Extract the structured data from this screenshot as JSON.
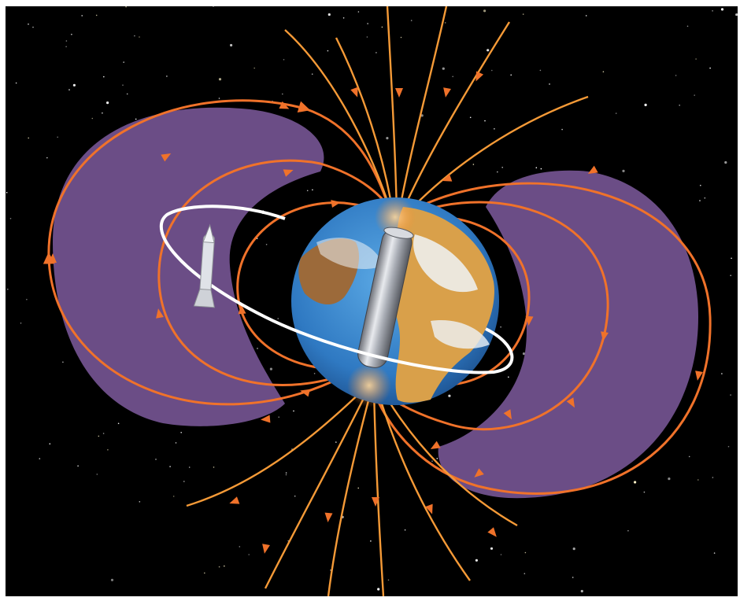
{
  "scene": {
    "subject": "earth-magnetosphere-illustration",
    "colors": {
      "space": "#000000",
      "radiation_belt": "#6b4d86",
      "field_line": "#f0722a",
      "field_line_outer": "#f59a37",
      "ocean": "#3b8fd4",
      "land": "#d9a04a",
      "cloud": "#eef3f6",
      "bar_magnet": "#b9bcc2",
      "orbit": "#ffffff"
    },
    "icons": [
      "star-icon",
      "satellite-icon",
      "bar-magnet-icon",
      "arrow-icon"
    ]
  }
}
